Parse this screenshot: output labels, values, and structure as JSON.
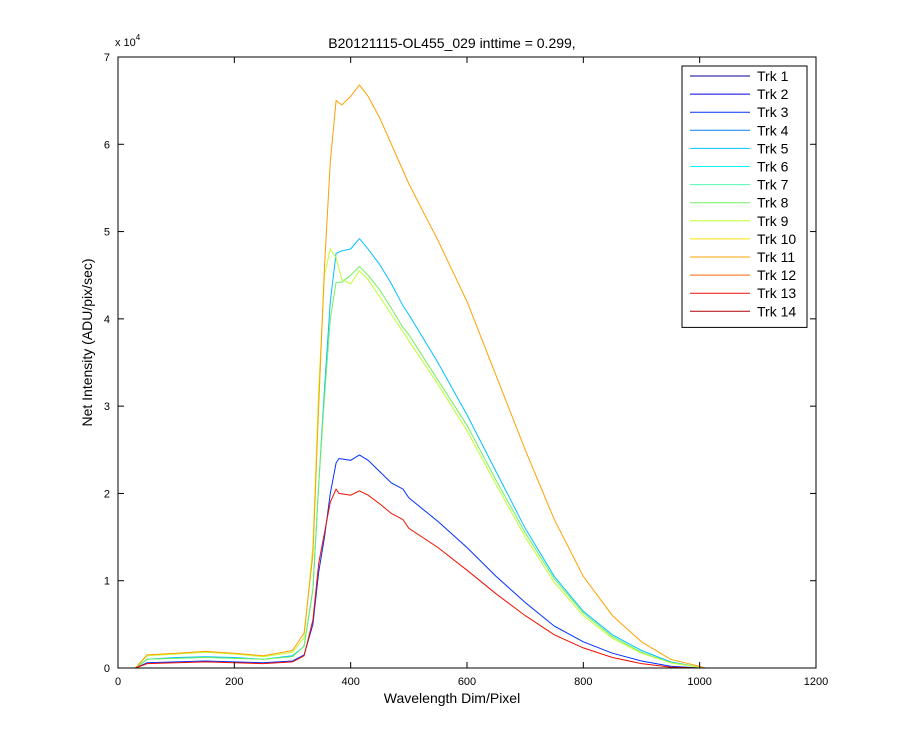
{
  "chart_data": {
    "type": "line",
    "title": "B20121115-OL455_029 inttime = 0.299,",
    "xlabel": "Wavelength Dim/Pixel",
    "ylabel": "Net Intensity (ADU/pix/sec)",
    "y_multiplier": "x 10",
    "y_multiplier_exp": "4",
    "xlim": [
      0,
      1200
    ],
    "ylim": [
      0,
      7
    ],
    "xticks": [
      0,
      200,
      400,
      600,
      800,
      1000,
      1200
    ],
    "yticks": [
      0,
      1,
      2,
      3,
      4,
      5,
      6,
      7
    ],
    "grid": false,
    "legend_position": "top-right",
    "series": [
      {
        "name": "Trk 1",
        "color": "#00008F",
        "x": [
          0,
          30,
          1030
        ],
        "y": [
          0,
          0,
          0
        ]
      },
      {
        "name": "Trk 2",
        "color": "#0000DF",
        "x": [
          0,
          30,
          1030
        ],
        "y": [
          0,
          0,
          0
        ]
      },
      {
        "name": "Trk 3",
        "color": "#0030FF",
        "x": [
          30,
          50,
          100,
          150,
          200,
          250,
          300,
          320,
          335,
          345,
          355,
          365,
          375,
          380,
          400,
          415,
          430,
          450,
          470,
          490,
          500,
          550,
          600,
          650,
          700,
          750,
          800,
          850,
          900,
          950,
          1000,
          1010
        ],
        "y": [
          0,
          0.06,
          0.07,
          0.08,
          0.07,
          0.06,
          0.08,
          0.15,
          0.5,
          1.1,
          1.5,
          2.0,
          2.35,
          2.4,
          2.38,
          2.44,
          2.38,
          2.25,
          2.12,
          2.05,
          1.95,
          1.68,
          1.38,
          1.05,
          0.75,
          0.48,
          0.3,
          0.17,
          0.08,
          0.02,
          0.0,
          0.0
        ]
      },
      {
        "name": "Trk 4",
        "color": "#0080FF",
        "x": [
          0,
          30,
          1030
        ],
        "y": [
          0,
          0,
          0
        ]
      },
      {
        "name": "Trk 5",
        "color": "#00C0FF",
        "x": [
          30,
          50,
          100,
          150,
          200,
          250,
          300,
          320,
          335,
          345,
          355,
          365,
          375,
          385,
          400,
          415,
          430,
          450,
          470,
          490,
          500,
          550,
          600,
          650,
          700,
          750,
          800,
          850,
          900,
          950,
          1000,
          1010
        ],
        "y": [
          0,
          0.1,
          0.12,
          0.13,
          0.12,
          0.1,
          0.14,
          0.25,
          0.9,
          2.1,
          3.2,
          4.2,
          4.75,
          4.78,
          4.8,
          4.92,
          4.8,
          4.62,
          4.4,
          4.15,
          4.05,
          3.5,
          2.9,
          2.25,
          1.6,
          1.05,
          0.65,
          0.38,
          0.2,
          0.07,
          0.01,
          0.0
        ]
      },
      {
        "name": "Trk 6",
        "color": "#10F0EF",
        "x": [
          0,
          30,
          1030
        ],
        "y": [
          0,
          0,
          0
        ]
      },
      {
        "name": "Trk 7",
        "color": "#50FFAF",
        "x": [
          0,
          30,
          1030
        ],
        "y": [
          0,
          0,
          0
        ]
      },
      {
        "name": "Trk 8",
        "color": "#70F060",
        "x": [
          30,
          50,
          100,
          150,
          200,
          250,
          300,
          320,
          335,
          345,
          355,
          365,
          375,
          385,
          400,
          415,
          430,
          450,
          470,
          490,
          500,
          550,
          600,
          650,
          700,
          750,
          800,
          850,
          900,
          950,
          1000,
          1010
        ],
        "y": [
          0,
          0.1,
          0.11,
          0.12,
          0.11,
          0.1,
          0.13,
          0.25,
          0.9,
          2.1,
          3.1,
          4.0,
          4.42,
          4.42,
          4.5,
          4.6,
          4.5,
          4.33,
          4.12,
          3.9,
          3.82,
          3.3,
          2.78,
          2.15,
          1.55,
          1.02,
          0.63,
          0.36,
          0.18,
          0.06,
          0.01,
          0.0
        ]
      },
      {
        "name": "Trk 9",
        "color": "#C0FF30",
        "x": [
          30,
          50,
          100,
          150,
          200,
          250,
          300,
          320,
          335,
          345,
          355,
          365,
          375,
          385,
          400,
          415,
          430,
          450,
          470,
          490,
          500,
          550,
          600,
          650,
          700,
          750,
          800,
          850,
          900,
          950,
          1000,
          1010
        ],
        "y": [
          0,
          0.14,
          0.16,
          0.18,
          0.16,
          0.13,
          0.18,
          0.35,
          1.4,
          3.2,
          4.5,
          4.8,
          4.7,
          4.45,
          4.4,
          4.55,
          4.45,
          4.25,
          4.05,
          3.85,
          3.75,
          3.25,
          2.72,
          2.1,
          1.5,
          0.98,
          0.6,
          0.34,
          0.17,
          0.06,
          0.01,
          0.0
        ]
      },
      {
        "name": "Trk 10",
        "color": "#FFE000",
        "x": [
          0,
          30,
          1030
        ],
        "y": [
          0,
          0,
          0
        ]
      },
      {
        "name": "Trk 11",
        "color": "#FFA000",
        "x": [
          30,
          50,
          100,
          150,
          200,
          250,
          300,
          320,
          335,
          345,
          355,
          365,
          375,
          385,
          400,
          415,
          430,
          450,
          470,
          490,
          500,
          550,
          600,
          650,
          700,
          750,
          800,
          850,
          900,
          950,
          1000,
          1010
        ],
        "y": [
          0,
          0.15,
          0.17,
          0.19,
          0.17,
          0.14,
          0.2,
          0.4,
          1.3,
          3.0,
          4.6,
          5.8,
          6.5,
          6.45,
          6.55,
          6.68,
          6.55,
          6.3,
          6.0,
          5.7,
          5.55,
          4.9,
          4.2,
          3.35,
          2.5,
          1.7,
          1.05,
          0.6,
          0.3,
          0.1,
          0.02,
          0.0
        ]
      },
      {
        "name": "Trk 12",
        "color": "#FF6000",
        "x": [
          0,
          30,
          1030
        ],
        "y": [
          0,
          0,
          0
        ]
      },
      {
        "name": "Trk 13",
        "color": "#F01000",
        "x": [
          30,
          50,
          100,
          150,
          200,
          250,
          300,
          320,
          335,
          345,
          355,
          365,
          375,
          380,
          400,
          415,
          430,
          450,
          470,
          490,
          500,
          550,
          600,
          650,
          700,
          750,
          800,
          850,
          900,
          950,
          1000,
          1010
        ],
        "y": [
          0,
          0.05,
          0.06,
          0.07,
          0.06,
          0.05,
          0.07,
          0.14,
          0.55,
          1.2,
          1.55,
          1.9,
          2.05,
          2.0,
          1.98,
          2.03,
          1.98,
          1.88,
          1.77,
          1.7,
          1.6,
          1.38,
          1.12,
          0.85,
          0.6,
          0.38,
          0.23,
          0.12,
          0.05,
          0.01,
          0.0,
          0.0
        ]
      },
      {
        "name": "Trk 14",
        "color": "#AF0000",
        "x": [
          0,
          30,
          1030
        ],
        "y": [
          0,
          0,
          0
        ]
      }
    ]
  }
}
